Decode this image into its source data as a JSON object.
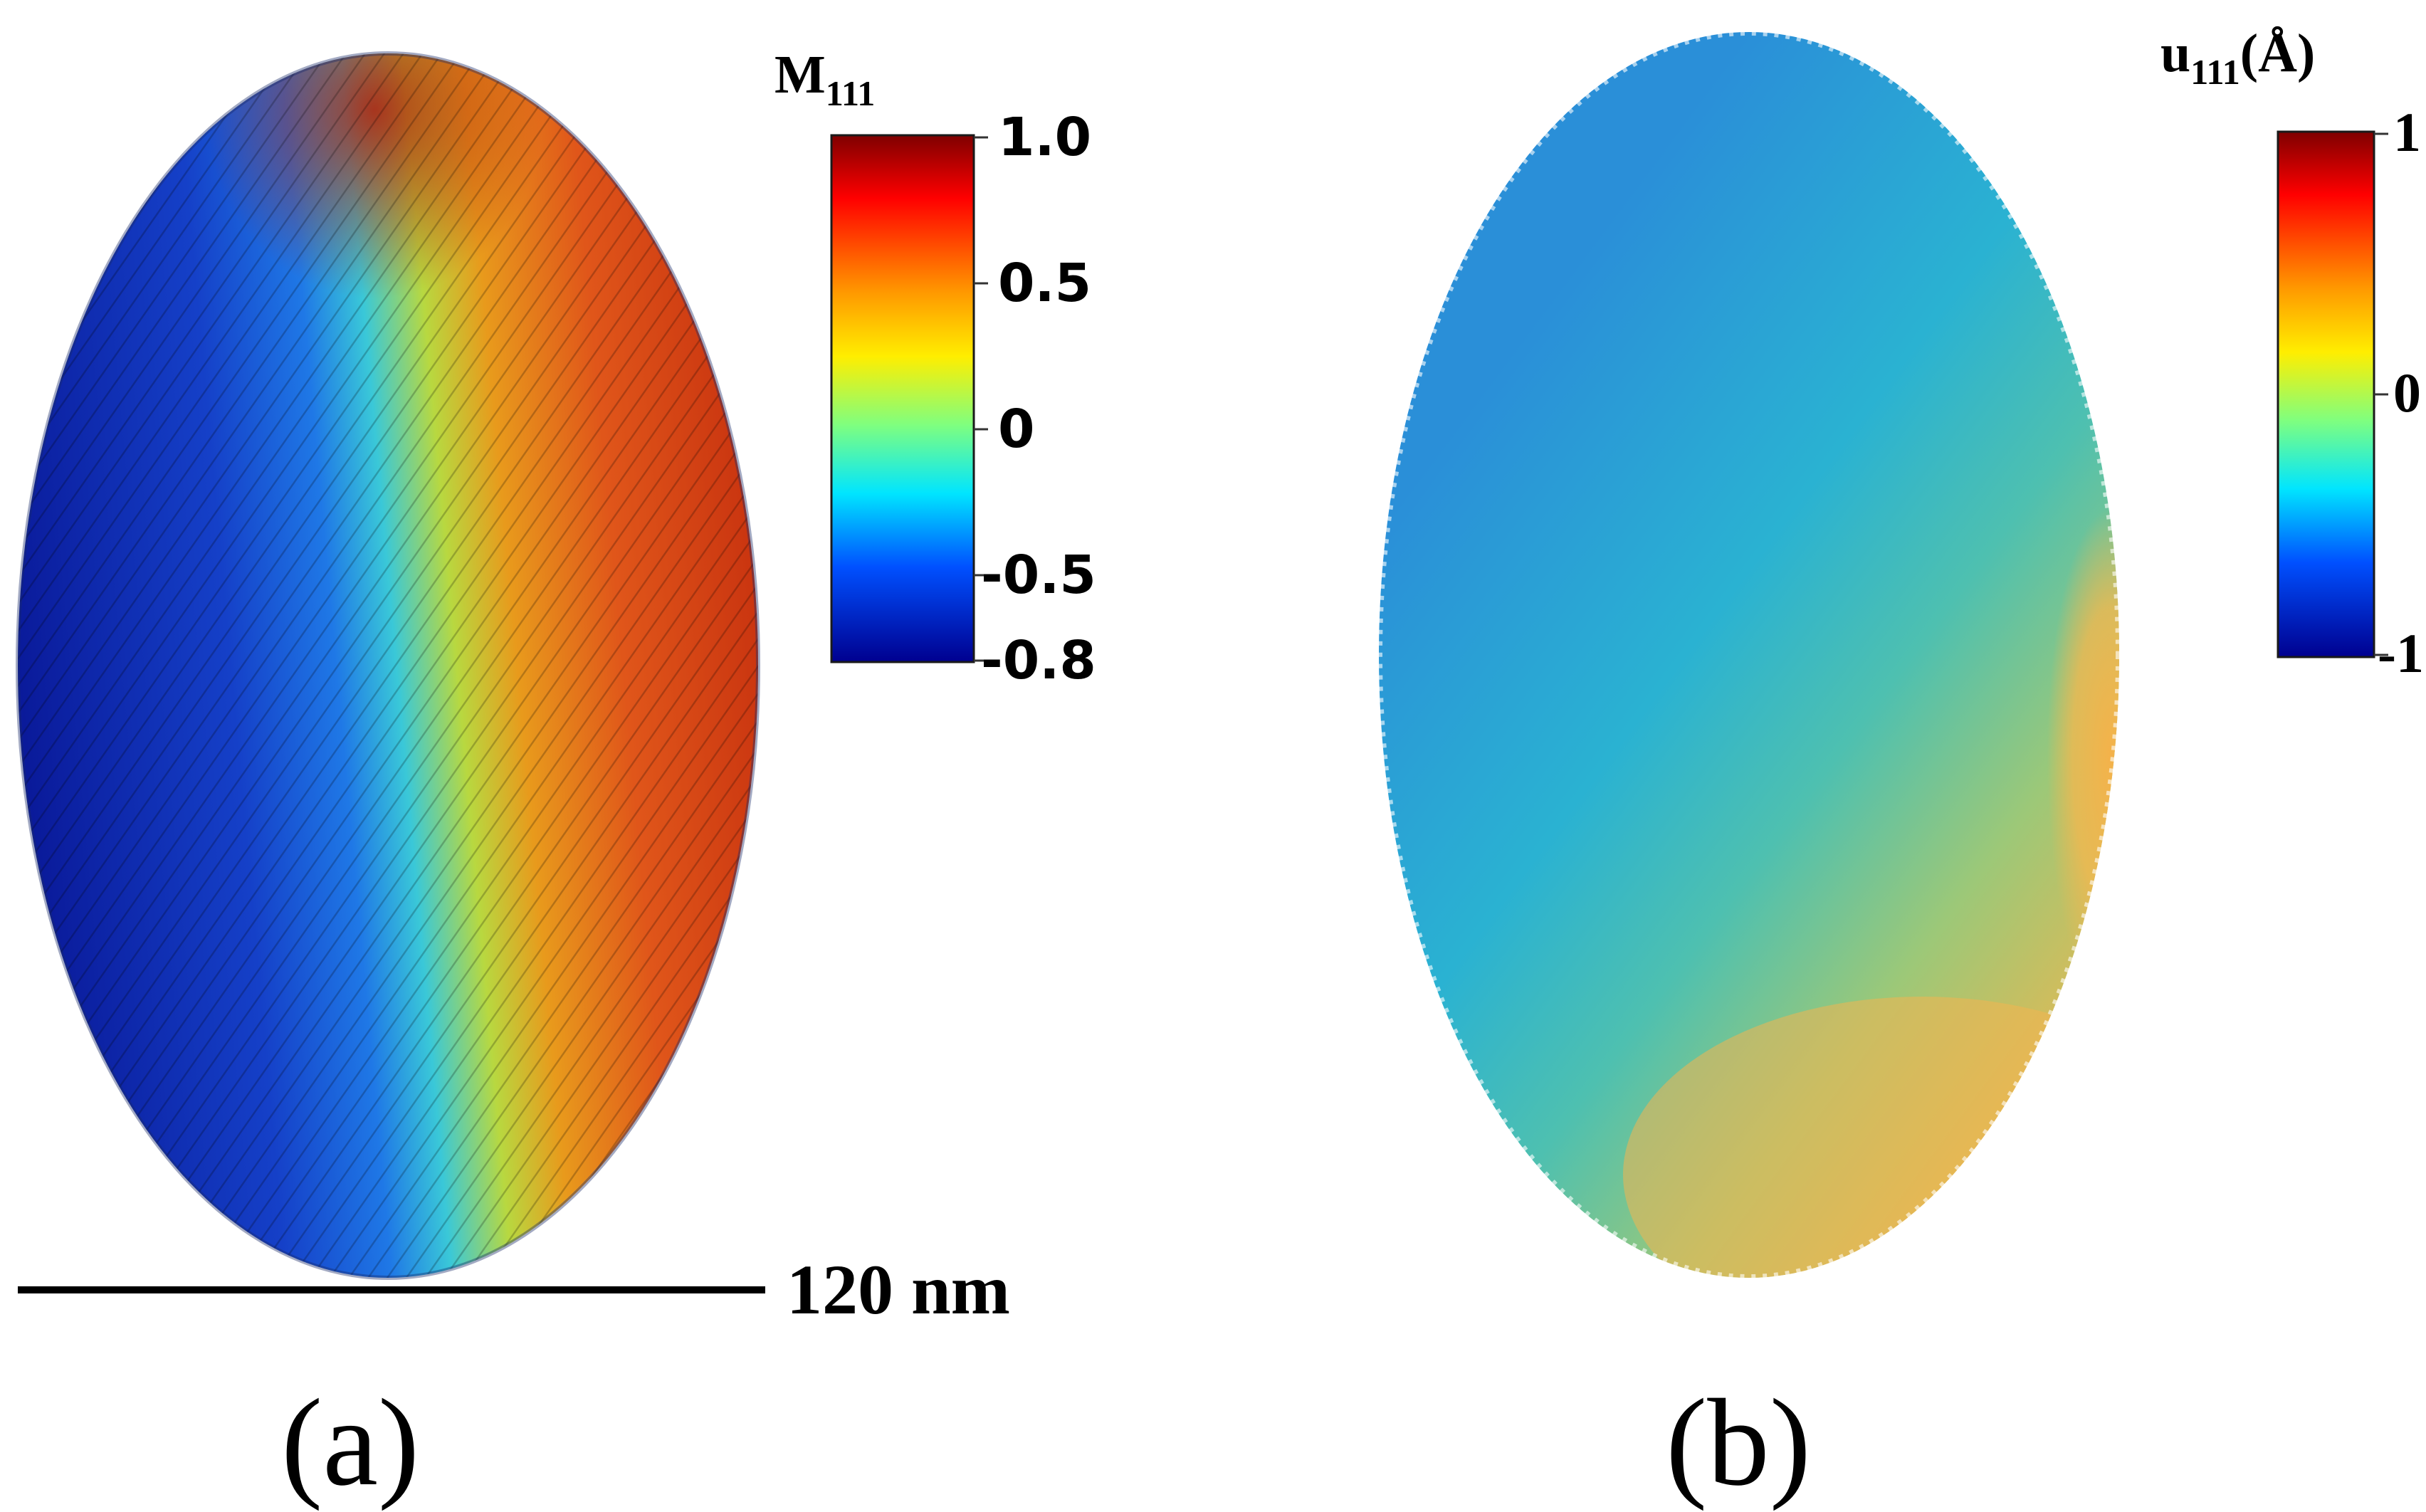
{
  "panel_a": {
    "caption": "(a)",
    "colorbar": {
      "title_main": "M",
      "title_sub": "111",
      "ticks": [
        "1.0",
        "0.5",
        "0",
        "-0.5",
        "-0.8"
      ],
      "tick_values": [
        1.0,
        0.5,
        0,
        -0.5,
        -0.8
      ],
      "range": [
        -0.8,
        1.0
      ],
      "colormap": "jet"
    },
    "scale_bar_label": "120 nm"
  },
  "panel_b": {
    "caption": "(b)",
    "colorbar": {
      "title_main": "u",
      "title_sub": "111",
      "title_unit": "(Å)",
      "ticks": [
        "1",
        "0",
        "-1"
      ],
      "tick_values": [
        1,
        0,
        -1
      ],
      "range": [
        -1,
        1
      ],
      "colormap": "jet"
    }
  },
  "colors": {
    "jet_dark_red": "#7f0000",
    "jet_red": "#ff2a00",
    "jet_orange": "#ff9a00",
    "jet_yellow": "#ffee00",
    "jet_green": "#7fff7f",
    "jet_cyan": "#00e5ff",
    "jet_blue": "#0050ff",
    "jet_dark_blue": "#00008f",
    "ellipsoid_b_blue": "#2aa6d6",
    "ellipsoid_b_orange": "#f2b450"
  }
}
